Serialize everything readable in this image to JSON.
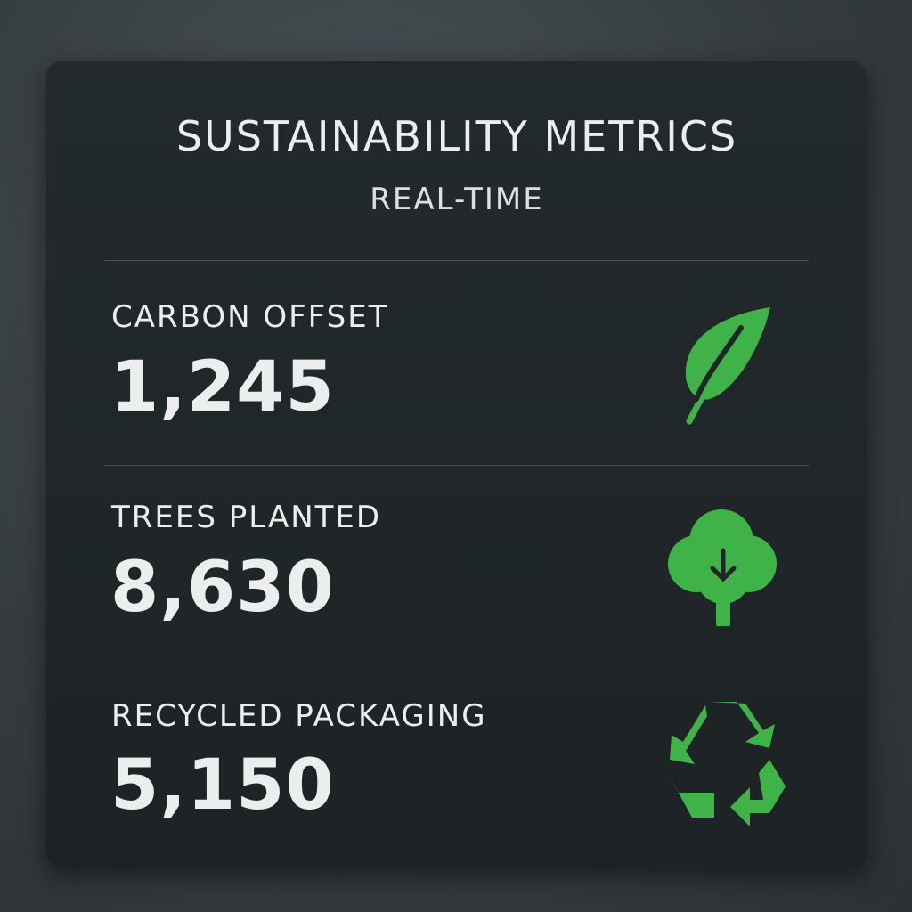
{
  "header": {
    "title": "SUSTAINABILITY METRICS",
    "subtitle": "REAL-TIME"
  },
  "metrics": [
    {
      "label": "CARBON OFFSET",
      "value": "1,245"
    },
    {
      "label": "TREES PLANTED",
      "value": "8,630"
    },
    {
      "label": "RECYCLED PACKAGING",
      "value": "5,150"
    }
  ]
}
